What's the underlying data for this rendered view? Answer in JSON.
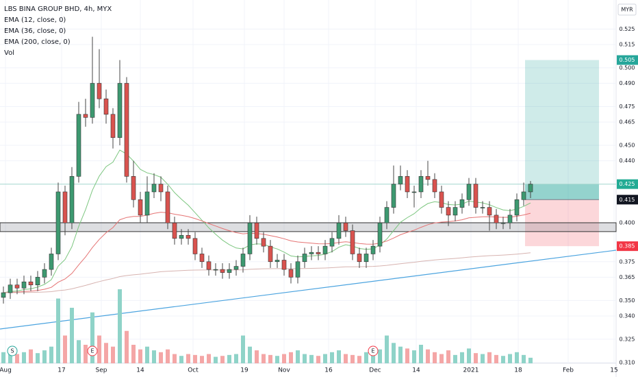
{
  "chart_data": {
    "type": "candlestick",
    "title": "LBS BINA GROUP BHD, 4h, MYX",
    "currency": "MYR",
    "indicators": [
      {
        "name": "EMA (12, close, 0)",
        "period": 12,
        "color": "#7cc67f"
      },
      {
        "name": "EMA (36, close, 0)",
        "period": 36,
        "color": "#e57373"
      },
      {
        "name": "EMA (200, close, 0)",
        "period": 200,
        "color": "#d7b3b0"
      }
    ],
    "volume_name": "Vol",
    "x": [
      0,
      1,
      2,
      3,
      4,
      5,
      6,
      7,
      8,
      9,
      10,
      11,
      12,
      13,
      14,
      15,
      16,
      17,
      18,
      19,
      20,
      21,
      22,
      23,
      24,
      25,
      26,
      27,
      28,
      29,
      30,
      31,
      32,
      33,
      34,
      35,
      36,
      37,
      38,
      39,
      40,
      41,
      42,
      43,
      44,
      45,
      46,
      47,
      48,
      49,
      50,
      51,
      52,
      53,
      54,
      55,
      56,
      57,
      58,
      59,
      60,
      61,
      62,
      63,
      64,
      65,
      66,
      67,
      68,
      69,
      70,
      71,
      72,
      73,
      74,
      75,
      76,
      77
    ],
    "open": [
      0.352,
      0.355,
      0.36,
      0.358,
      0.362,
      0.36,
      0.365,
      0.37,
      0.38,
      0.42,
      0.4,
      0.43,
      0.47,
      0.468,
      0.49,
      0.48,
      0.47,
      0.455,
      0.49,
      0.43,
      0.415,
      0.405,
      0.42,
      0.425,
      0.42,
      0.4,
      0.39,
      0.392,
      0.39,
      0.38,
      0.375,
      0.37,
      0.37,
      0.368,
      0.37,
      0.372,
      0.38,
      0.4,
      0.39,
      0.385,
      0.375,
      0.376,
      0.37,
      0.365,
      0.375,
      0.38,
      0.381,
      0.38,
      0.385,
      0.39,
      0.4,
      0.395,
      0.38,
      0.375,
      0.38,
      0.385,
      0.4,
      0.41,
      0.425,
      0.43,
      0.42,
      0.42,
      0.43,
      0.428,
      0.42,
      0.41,
      0.405,
      0.41,
      0.415,
      0.425,
      0.41,
      0.41,
      0.405,
      0.4,
      0.4,
      0.405,
      0.415,
      0.42
    ],
    "high": [
      0.359,
      0.364,
      0.364,
      0.366,
      0.366,
      0.369,
      0.374,
      0.384,
      0.426,
      0.424,
      0.436,
      0.478,
      0.48,
      0.52,
      0.512,
      0.486,
      0.474,
      0.505,
      0.494,
      0.44,
      0.42,
      0.43,
      0.432,
      0.43,
      0.424,
      0.404,
      0.396,
      0.396,
      0.394,
      0.384,
      0.379,
      0.374,
      0.374,
      0.374,
      0.376,
      0.384,
      0.405,
      0.404,
      0.394,
      0.389,
      0.38,
      0.38,
      0.374,
      0.379,
      0.384,
      0.385,
      0.385,
      0.389,
      0.394,
      0.405,
      0.404,
      0.399,
      0.384,
      0.384,
      0.389,
      0.404,
      0.414,
      0.437,
      0.437,
      0.434,
      0.424,
      0.434,
      0.44,
      0.432,
      0.424,
      0.414,
      0.414,
      0.419,
      0.429,
      0.429,
      0.414,
      0.414,
      0.409,
      0.404,
      0.409,
      0.419,
      0.426,
      0.427
    ],
    "low": [
      0.348,
      0.351,
      0.354,
      0.354,
      0.356,
      0.356,
      0.361,
      0.366,
      0.376,
      0.392,
      0.396,
      0.426,
      0.462,
      0.464,
      0.474,
      0.464,
      0.448,
      0.45,
      0.426,
      0.41,
      0.4,
      0.4,
      0.416,
      0.414,
      0.396,
      0.386,
      0.386,
      0.386,
      0.376,
      0.371,
      0.366,
      0.366,
      0.364,
      0.364,
      0.366,
      0.368,
      0.376,
      0.386,
      0.381,
      0.371,
      0.371,
      0.366,
      0.361,
      0.361,
      0.371,
      0.376,
      0.376,
      0.376,
      0.381,
      0.386,
      0.391,
      0.376,
      0.371,
      0.371,
      0.376,
      0.381,
      0.396,
      0.406,
      0.421,
      0.416,
      0.41,
      0.416,
      0.424,
      0.416,
      0.406,
      0.398,
      0.401,
      0.406,
      0.411,
      0.406,
      0.406,
      0.395,
      0.396,
      0.396,
      0.396,
      0.401,
      0.411,
      0.416
    ],
    "close": [
      0.355,
      0.36,
      0.358,
      0.362,
      0.36,
      0.365,
      0.37,
      0.38,
      0.42,
      0.4,
      0.43,
      0.47,
      0.468,
      0.49,
      0.48,
      0.47,
      0.455,
      0.49,
      0.43,
      0.415,
      0.405,
      0.42,
      0.425,
      0.42,
      0.4,
      0.39,
      0.392,
      0.39,
      0.38,
      0.375,
      0.37,
      0.37,
      0.368,
      0.37,
      0.372,
      0.38,
      0.4,
      0.39,
      0.385,
      0.375,
      0.376,
      0.37,
      0.365,
      0.375,
      0.38,
      0.381,
      0.38,
      0.385,
      0.39,
      0.4,
      0.395,
      0.38,
      0.375,
      0.38,
      0.385,
      0.4,
      0.41,
      0.425,
      0.43,
      0.42,
      0.42,
      0.43,
      0.428,
      0.42,
      0.41,
      0.405,
      0.41,
      0.415,
      0.425,
      0.41,
      0.41,
      0.405,
      0.4,
      0.4,
      0.405,
      0.415,
      0.42,
      0.425
    ],
    "volume": [
      12,
      14,
      10,
      12,
      15,
      11,
      14,
      18,
      70,
      30,
      60,
      25,
      20,
      55,
      30,
      22,
      18,
      80,
      35,
      20,
      15,
      18,
      14,
      12,
      15,
      10,
      8,
      10,
      9,
      8,
      10,
      7,
      8,
      9,
      10,
      30,
      18,
      14,
      10,
      9,
      8,
      10,
      12,
      14,
      10,
      9,
      8,
      10,
      12,
      14,
      10,
      9,
      8,
      12,
      14,
      15,
      30,
      22,
      18,
      16,
      14,
      20,
      15,
      12,
      10,
      14,
      9,
      12,
      16,
      11,
      10,
      12,
      9,
      8,
      10,
      12,
      9,
      6
    ],
    "vlim": [
      0,
      100
    ],
    "up_color": "#3d9970",
    "down_color": "#d9534f",
    "vol_up_color": "#8fd3c8",
    "vol_down_color": "#f4a6a6",
    "xlim": [
      -0.5,
      89.5
    ],
    "xticks": [
      {
        "value": 0.3,
        "label": "Aug"
      },
      {
        "value": 8.5,
        "label": "17"
      },
      {
        "value": 14.3,
        "label": "Sep"
      },
      {
        "value": 20,
        "label": "14"
      },
      {
        "value": 27.7,
        "label": "Oct"
      },
      {
        "value": 35.2,
        "label": "19"
      },
      {
        "value": 41,
        "label": "Nov"
      },
      {
        "value": 47.5,
        "label": "16"
      },
      {
        "value": 54.3,
        "label": "Dec"
      },
      {
        "value": 60.3,
        "label": "14"
      },
      {
        "value": 68.3,
        "label": "2021"
      },
      {
        "value": 75.2,
        "label": "18"
      },
      {
        "value": 82.5,
        "label": "Feb"
      },
      {
        "value": 89.2,
        "label": "15"
      }
    ],
    "ylim": [
      0.3095,
      0.5437
    ],
    "yticks": [
      {
        "value": 0.31,
        "label": "0.310"
      },
      {
        "value": 0.325,
        "label": "0.325"
      },
      {
        "value": 0.34,
        "label": "0.340"
      },
      {
        "value": 0.35,
        "label": "0.350"
      },
      {
        "value": 0.365,
        "label": "0.365"
      },
      {
        "value": 0.375,
        "label": "0.375"
      },
      {
        "value": 0.4,
        "label": "0.400"
      },
      {
        "value": 0.44,
        "label": "0.440"
      },
      {
        "value": 0.45,
        "label": "0.450"
      },
      {
        "value": 0.465,
        "label": "0.465"
      },
      {
        "value": 0.475,
        "label": "0.475"
      },
      {
        "value": 0.49,
        "label": "0.490"
      },
      {
        "value": 0.5,
        "label": "0.500"
      },
      {
        "value": 0.515,
        "label": "0.515"
      },
      {
        "value": 0.525,
        "label": "0.525"
      }
    ],
    "grid": true,
    "price_labels": [
      {
        "value": 0.505,
        "label": "0.505",
        "color": "#26a69a"
      },
      {
        "value": 0.425,
        "label": "0.425",
        "color": "#22ab94"
      },
      {
        "value": 0.415,
        "label": "0.415",
        "color": "#131722"
      },
      {
        "value": 0.385,
        "label": "0.385",
        "color": "#f23645"
      }
    ],
    "last_price": 0.425,
    "position": {
      "target": 0.505,
      "entry": 0.415,
      "stop": 0.385,
      "x": [
        76.2,
        87
      ]
    },
    "support_zone": [
      0.3944,
      0.4001
    ],
    "trend_line": {
      "x": [
        -0.5,
        89.5
      ],
      "y": [
        0.3316,
        0.3824
      ],
      "color": "#4aa3df"
    },
    "events": [
      {
        "label": "S",
        "x": 1.3
      },
      {
        "label": "E",
        "x": 13
      },
      {
        "label": "E",
        "x": 54
      }
    ]
  }
}
